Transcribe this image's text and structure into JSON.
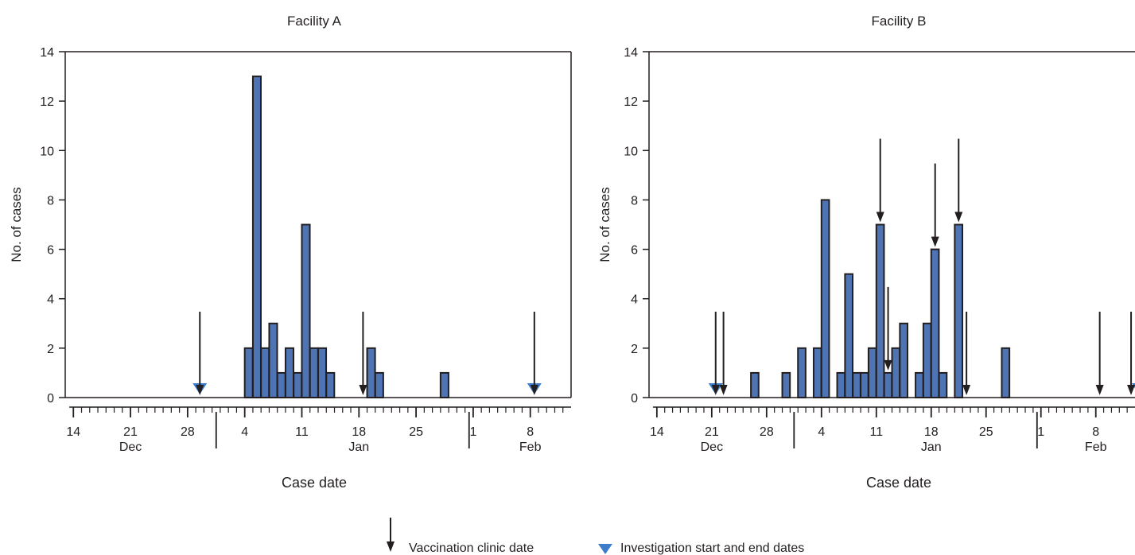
{
  "chart_data": [
    {
      "type": "bar",
      "title": "Facility A",
      "xlabel": "Case date",
      "ylabel": "No. of cases",
      "ylim": [
        0,
        14
      ],
      "y_ticks": [
        0,
        2,
        4,
        6,
        8,
        10,
        12,
        14
      ],
      "x_range": [
        "2017-12-13",
        "2018-02-13"
      ],
      "x_tick_labels": [
        {
          "date": "2017-12-14",
          "label": "14"
        },
        {
          "date": "2017-12-21",
          "label": "21"
        },
        {
          "date": "2017-12-28",
          "label": "28"
        },
        {
          "date": "2018-01-04",
          "label": "4"
        },
        {
          "date": "2018-01-11",
          "label": "11"
        },
        {
          "date": "2018-01-18",
          "label": "18"
        },
        {
          "date": "2018-01-25",
          "label": "25"
        },
        {
          "date": "2018-02-01",
          "label": "1"
        },
        {
          "date": "2018-02-08",
          "label": "8"
        }
      ],
      "month_labels": [
        {
          "date": "2017-12-21",
          "label": "Dec"
        },
        {
          "date": "2018-01-18",
          "label": "Jan"
        },
        {
          "date": "2018-02-08",
          "label": "Feb"
        }
      ],
      "month_boundaries": [
        "2018-01-01",
        "2018-02-01"
      ],
      "bars": [
        {
          "date": "2018-01-04",
          "value": 2
        },
        {
          "date": "2018-01-05",
          "value": 13
        },
        {
          "date": "2018-01-06",
          "value": 2
        },
        {
          "date": "2018-01-07",
          "value": 3
        },
        {
          "date": "2018-01-08",
          "value": 1
        },
        {
          "date": "2018-01-09",
          "value": 2
        },
        {
          "date": "2018-01-10",
          "value": 1
        },
        {
          "date": "2018-01-11",
          "value": 7
        },
        {
          "date": "2018-01-12",
          "value": 2
        },
        {
          "date": "2018-01-13",
          "value": 2
        },
        {
          "date": "2018-01-14",
          "value": 1
        },
        {
          "date": "2018-01-19",
          "value": 2
        },
        {
          "date": "2018-01-20",
          "value": 1
        },
        {
          "date": "2018-01-28",
          "value": 1
        }
      ],
      "vaccination_clinic_dates": [
        {
          "date": "2017-12-29",
          "y": 0
        },
        {
          "date": "2018-01-18",
          "y": 0
        },
        {
          "date": "2018-02-08",
          "y": 0
        }
      ],
      "investigation_dates": [
        "2017-12-29",
        "2018-02-08"
      ]
    },
    {
      "type": "bar",
      "title": "Facility B",
      "xlabel": "Case date",
      "ylabel": "No. of cases",
      "ylim": [
        0,
        14
      ],
      "y_ticks": [
        0,
        2,
        4,
        6,
        8,
        10,
        12,
        14
      ],
      "x_range": [
        "2017-12-13",
        "2018-02-13"
      ],
      "x_tick_labels": [
        {
          "date": "2017-12-14",
          "label": "14"
        },
        {
          "date": "2017-12-21",
          "label": "21"
        },
        {
          "date": "2017-12-28",
          "label": "28"
        },
        {
          "date": "2018-01-04",
          "label": "4"
        },
        {
          "date": "2018-01-11",
          "label": "11"
        },
        {
          "date": "2018-01-18",
          "label": "18"
        },
        {
          "date": "2018-01-25",
          "label": "25"
        },
        {
          "date": "2018-02-01",
          "label": "1"
        },
        {
          "date": "2018-02-08",
          "label": "8"
        }
      ],
      "month_labels": [
        {
          "date": "2017-12-21",
          "label": "Dec"
        },
        {
          "date": "2018-01-18",
          "label": "Jan"
        },
        {
          "date": "2018-02-08",
          "label": "Feb"
        }
      ],
      "month_boundaries": [
        "2018-01-01",
        "2018-02-01"
      ],
      "bars": [
        {
          "date": "2017-12-26",
          "value": 1
        },
        {
          "date": "2017-12-30",
          "value": 1
        },
        {
          "date": "2018-01-01",
          "value": 2
        },
        {
          "date": "2018-01-03",
          "value": 2
        },
        {
          "date": "2018-01-04",
          "value": 8
        },
        {
          "date": "2018-01-06",
          "value": 1
        },
        {
          "date": "2018-01-07",
          "value": 5
        },
        {
          "date": "2018-01-08",
          "value": 1
        },
        {
          "date": "2018-01-09",
          "value": 1
        },
        {
          "date": "2018-01-10",
          "value": 2
        },
        {
          "date": "2018-01-11",
          "value": 7
        },
        {
          "date": "2018-01-12",
          "value": 1
        },
        {
          "date": "2018-01-13",
          "value": 2
        },
        {
          "date": "2018-01-14",
          "value": 3
        },
        {
          "date": "2018-01-16",
          "value": 1
        },
        {
          "date": "2018-01-17",
          "value": 3
        },
        {
          "date": "2018-01-18",
          "value": 6
        },
        {
          "date": "2018-01-19",
          "value": 1
        },
        {
          "date": "2018-01-21",
          "value": 7
        },
        {
          "date": "2018-01-27",
          "value": 2
        }
      ],
      "vaccination_clinic_dates": [
        {
          "date": "2017-12-21",
          "y": 0
        },
        {
          "date": "2017-12-22",
          "y": 0
        },
        {
          "date": "2018-01-11",
          "y": 7
        },
        {
          "date": "2018-01-12",
          "y": 1
        },
        {
          "date": "2018-01-18",
          "y": 6
        },
        {
          "date": "2018-01-21",
          "y": 7
        },
        {
          "date": "2018-01-22",
          "y": 0
        },
        {
          "date": "2018-02-08",
          "y": 0
        },
        {
          "date": "2018-02-12",
          "y": 0
        }
      ],
      "investigation_dates": [
        "2017-12-21",
        "2018-02-13"
      ]
    }
  ],
  "legend": {
    "vaccination_label": "Vaccination clinic date",
    "investigation_label": "Investigation start and end dates",
    "placement": "bottom-center"
  },
  "colors": {
    "bar_fill": "#4f74b3",
    "bar_stroke": "#231f20",
    "axis": "#231f20",
    "marker": "#3d7cc9"
  }
}
